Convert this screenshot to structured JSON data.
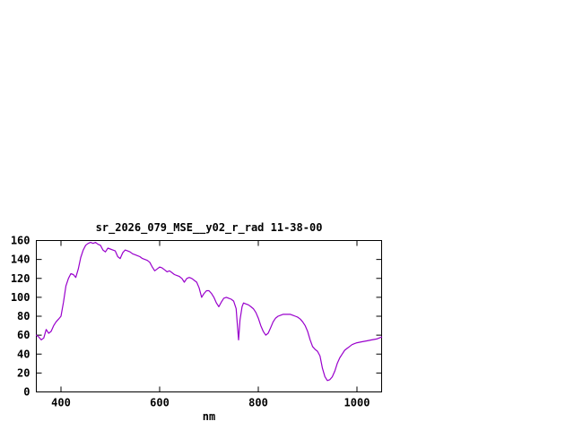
{
  "page": {
    "background_color": "#ffffff"
  },
  "chart": {
    "title": "sr_2026_079_MSE__y02_r_rad 11-38-00",
    "xlabel": "nm",
    "line_color": "#9900cc",
    "axis_color": "#000000",
    "text_color": "#000000"
  },
  "chart_data": {
    "type": "line",
    "title": "sr_2026_079_MSE__y02_r_rad 11-38-00",
    "xlabel": "nm",
    "ylabel": "",
    "xlim": [
      350,
      1050
    ],
    "ylim": [
      0,
      160
    ],
    "x_tick_labels": [
      400,
      600,
      800,
      1000
    ],
    "y_tick_labels": [
      0,
      20,
      40,
      60,
      80,
      100,
      120,
      140,
      160
    ],
    "grid": false,
    "legend": "none",
    "series": [
      {
        "name": "sr_2026_079_MSE__y02_r_rad",
        "points": [
          [
            350,
            60
          ],
          [
            355,
            58
          ],
          [
            360,
            55
          ],
          [
            365,
            57
          ],
          [
            370,
            66
          ],
          [
            375,
            62
          ],
          [
            380,
            64
          ],
          [
            385,
            70
          ],
          [
            390,
            74
          ],
          [
            395,
            77
          ],
          [
            400,
            80
          ],
          [
            405,
            95
          ],
          [
            410,
            112
          ],
          [
            415,
            120
          ],
          [
            420,
            125
          ],
          [
            425,
            124
          ],
          [
            430,
            121
          ],
          [
            435,
            130
          ],
          [
            440,
            142
          ],
          [
            445,
            150
          ],
          [
            450,
            155
          ],
          [
            455,
            157
          ],
          [
            460,
            158
          ],
          [
            465,
            157
          ],
          [
            470,
            158
          ],
          [
            475,
            156
          ],
          [
            480,
            155
          ],
          [
            485,
            150
          ],
          [
            490,
            148
          ],
          [
            495,
            152
          ],
          [
            500,
            151
          ],
          [
            505,
            150
          ],
          [
            510,
            149
          ],
          [
            515,
            143
          ],
          [
            520,
            141
          ],
          [
            525,
            147
          ],
          [
            530,
            150
          ],
          [
            535,
            149
          ],
          [
            540,
            148
          ],
          [
            545,
            146
          ],
          [
            550,
            145
          ],
          [
            555,
            144
          ],
          [
            560,
            143
          ],
          [
            565,
            141
          ],
          [
            570,
            140
          ],
          [
            575,
            139
          ],
          [
            580,
            137
          ],
          [
            585,
            132
          ],
          [
            590,
            128
          ],
          [
            595,
            130
          ],
          [
            600,
            132
          ],
          [
            605,
            131
          ],
          [
            610,
            129
          ],
          [
            615,
            127
          ],
          [
            620,
            128
          ],
          [
            625,
            126
          ],
          [
            630,
            124
          ],
          [
            635,
            123
          ],
          [
            640,
            122
          ],
          [
            645,
            120
          ],
          [
            650,
            116
          ],
          [
            655,
            120
          ],
          [
            660,
            121
          ],
          [
            665,
            120
          ],
          [
            670,
            118
          ],
          [
            675,
            116
          ],
          [
            680,
            110
          ],
          [
            685,
            100
          ],
          [
            690,
            104
          ],
          [
            695,
            107
          ],
          [
            700,
            107
          ],
          [
            705,
            104
          ],
          [
            710,
            100
          ],
          [
            715,
            94
          ],
          [
            720,
            90
          ],
          [
            725,
            95
          ],
          [
            730,
            99
          ],
          [
            735,
            100
          ],
          [
            740,
            99
          ],
          [
            745,
            98
          ],
          [
            750,
            96
          ],
          [
            755,
            88
          ],
          [
            758,
            68
          ],
          [
            760,
            55
          ],
          [
            763,
            76
          ],
          [
            767,
            90
          ],
          [
            770,
            94
          ],
          [
            775,
            93
          ],
          [
            780,
            92
          ],
          [
            785,
            90
          ],
          [
            790,
            88
          ],
          [
            795,
            84
          ],
          [
            800,
            78
          ],
          [
            805,
            70
          ],
          [
            810,
            64
          ],
          [
            815,
            60
          ],
          [
            820,
            62
          ],
          [
            825,
            68
          ],
          [
            830,
            74
          ],
          [
            835,
            78
          ],
          [
            840,
            80
          ],
          [
            845,
            81
          ],
          [
            850,
            82
          ],
          [
            855,
            82
          ],
          [
            860,
            82
          ],
          [
            865,
            82
          ],
          [
            870,
            81
          ],
          [
            875,
            80
          ],
          [
            880,
            79
          ],
          [
            885,
            77
          ],
          [
            890,
            74
          ],
          [
            895,
            70
          ],
          [
            900,
            64
          ],
          [
            905,
            55
          ],
          [
            910,
            48
          ],
          [
            915,
            45
          ],
          [
            920,
            43
          ],
          [
            925,
            38
          ],
          [
            930,
            25
          ],
          [
            935,
            16
          ],
          [
            940,
            12
          ],
          [
            945,
            13
          ],
          [
            950,
            16
          ],
          [
            955,
            22
          ],
          [
            960,
            30
          ],
          [
            965,
            36
          ],
          [
            970,
            40
          ],
          [
            975,
            44
          ],
          [
            980,
            46
          ],
          [
            985,
            48
          ],
          [
            990,
            50
          ],
          [
            995,
            51
          ],
          [
            1000,
            52
          ],
          [
            1010,
            53
          ],
          [
            1020,
            54
          ],
          [
            1030,
            55
          ],
          [
            1040,
            56
          ],
          [
            1050,
            58
          ]
        ]
      }
    ]
  }
}
